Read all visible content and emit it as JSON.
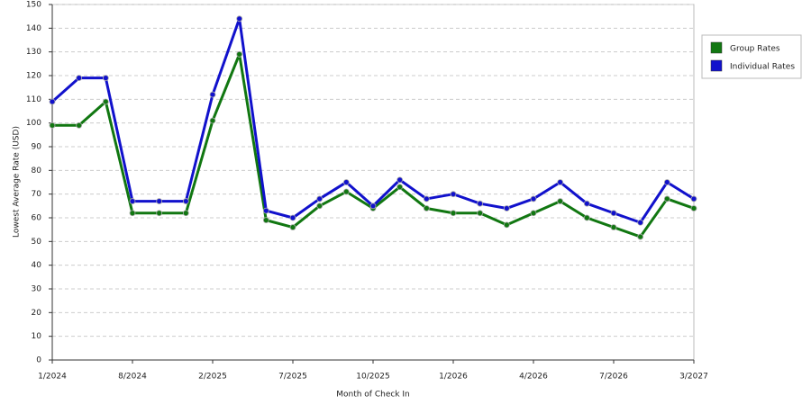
{
  "chart_data": {
    "type": "line",
    "x_label": "Month of Check In",
    "y_label": "Lowest Average Rate (USD)",
    "categories": [
      "1/2024",
      null,
      null,
      "8/2024",
      null,
      null,
      "2/2025",
      null,
      null,
      "7/2025",
      null,
      null,
      "10/2025",
      null,
      null,
      "1/2026",
      null,
      null,
      "4/2026",
      null,
      null,
      "7/2026",
      null,
      null,
      "3/2027"
    ],
    "series": [
      {
        "name": "Group Rates",
        "color": "#117711",
        "values": [
          99,
          99,
          109,
          62,
          62,
          62,
          101,
          129,
          59,
          56,
          65,
          71,
          64,
          73,
          64,
          62,
          62,
          57,
          62,
          67,
          60,
          56,
          52,
          68,
          64
        ]
      },
      {
        "name": "Individual Rates",
        "color": "#1111cc",
        "values": [
          109,
          119,
          119,
          67,
          67,
          67,
          112,
          144,
          63,
          60,
          68,
          75,
          65,
          76,
          68,
          70,
          66,
          64,
          68,
          75,
          66,
          62,
          58,
          75,
          68
        ]
      }
    ],
    "ylim": [
      0,
      150
    ],
    "yticks": [
      0,
      10,
      20,
      30,
      40,
      50,
      60,
      70,
      80,
      90,
      100,
      110,
      120,
      130,
      140,
      150
    ],
    "grid": true,
    "legend": "right"
  }
}
